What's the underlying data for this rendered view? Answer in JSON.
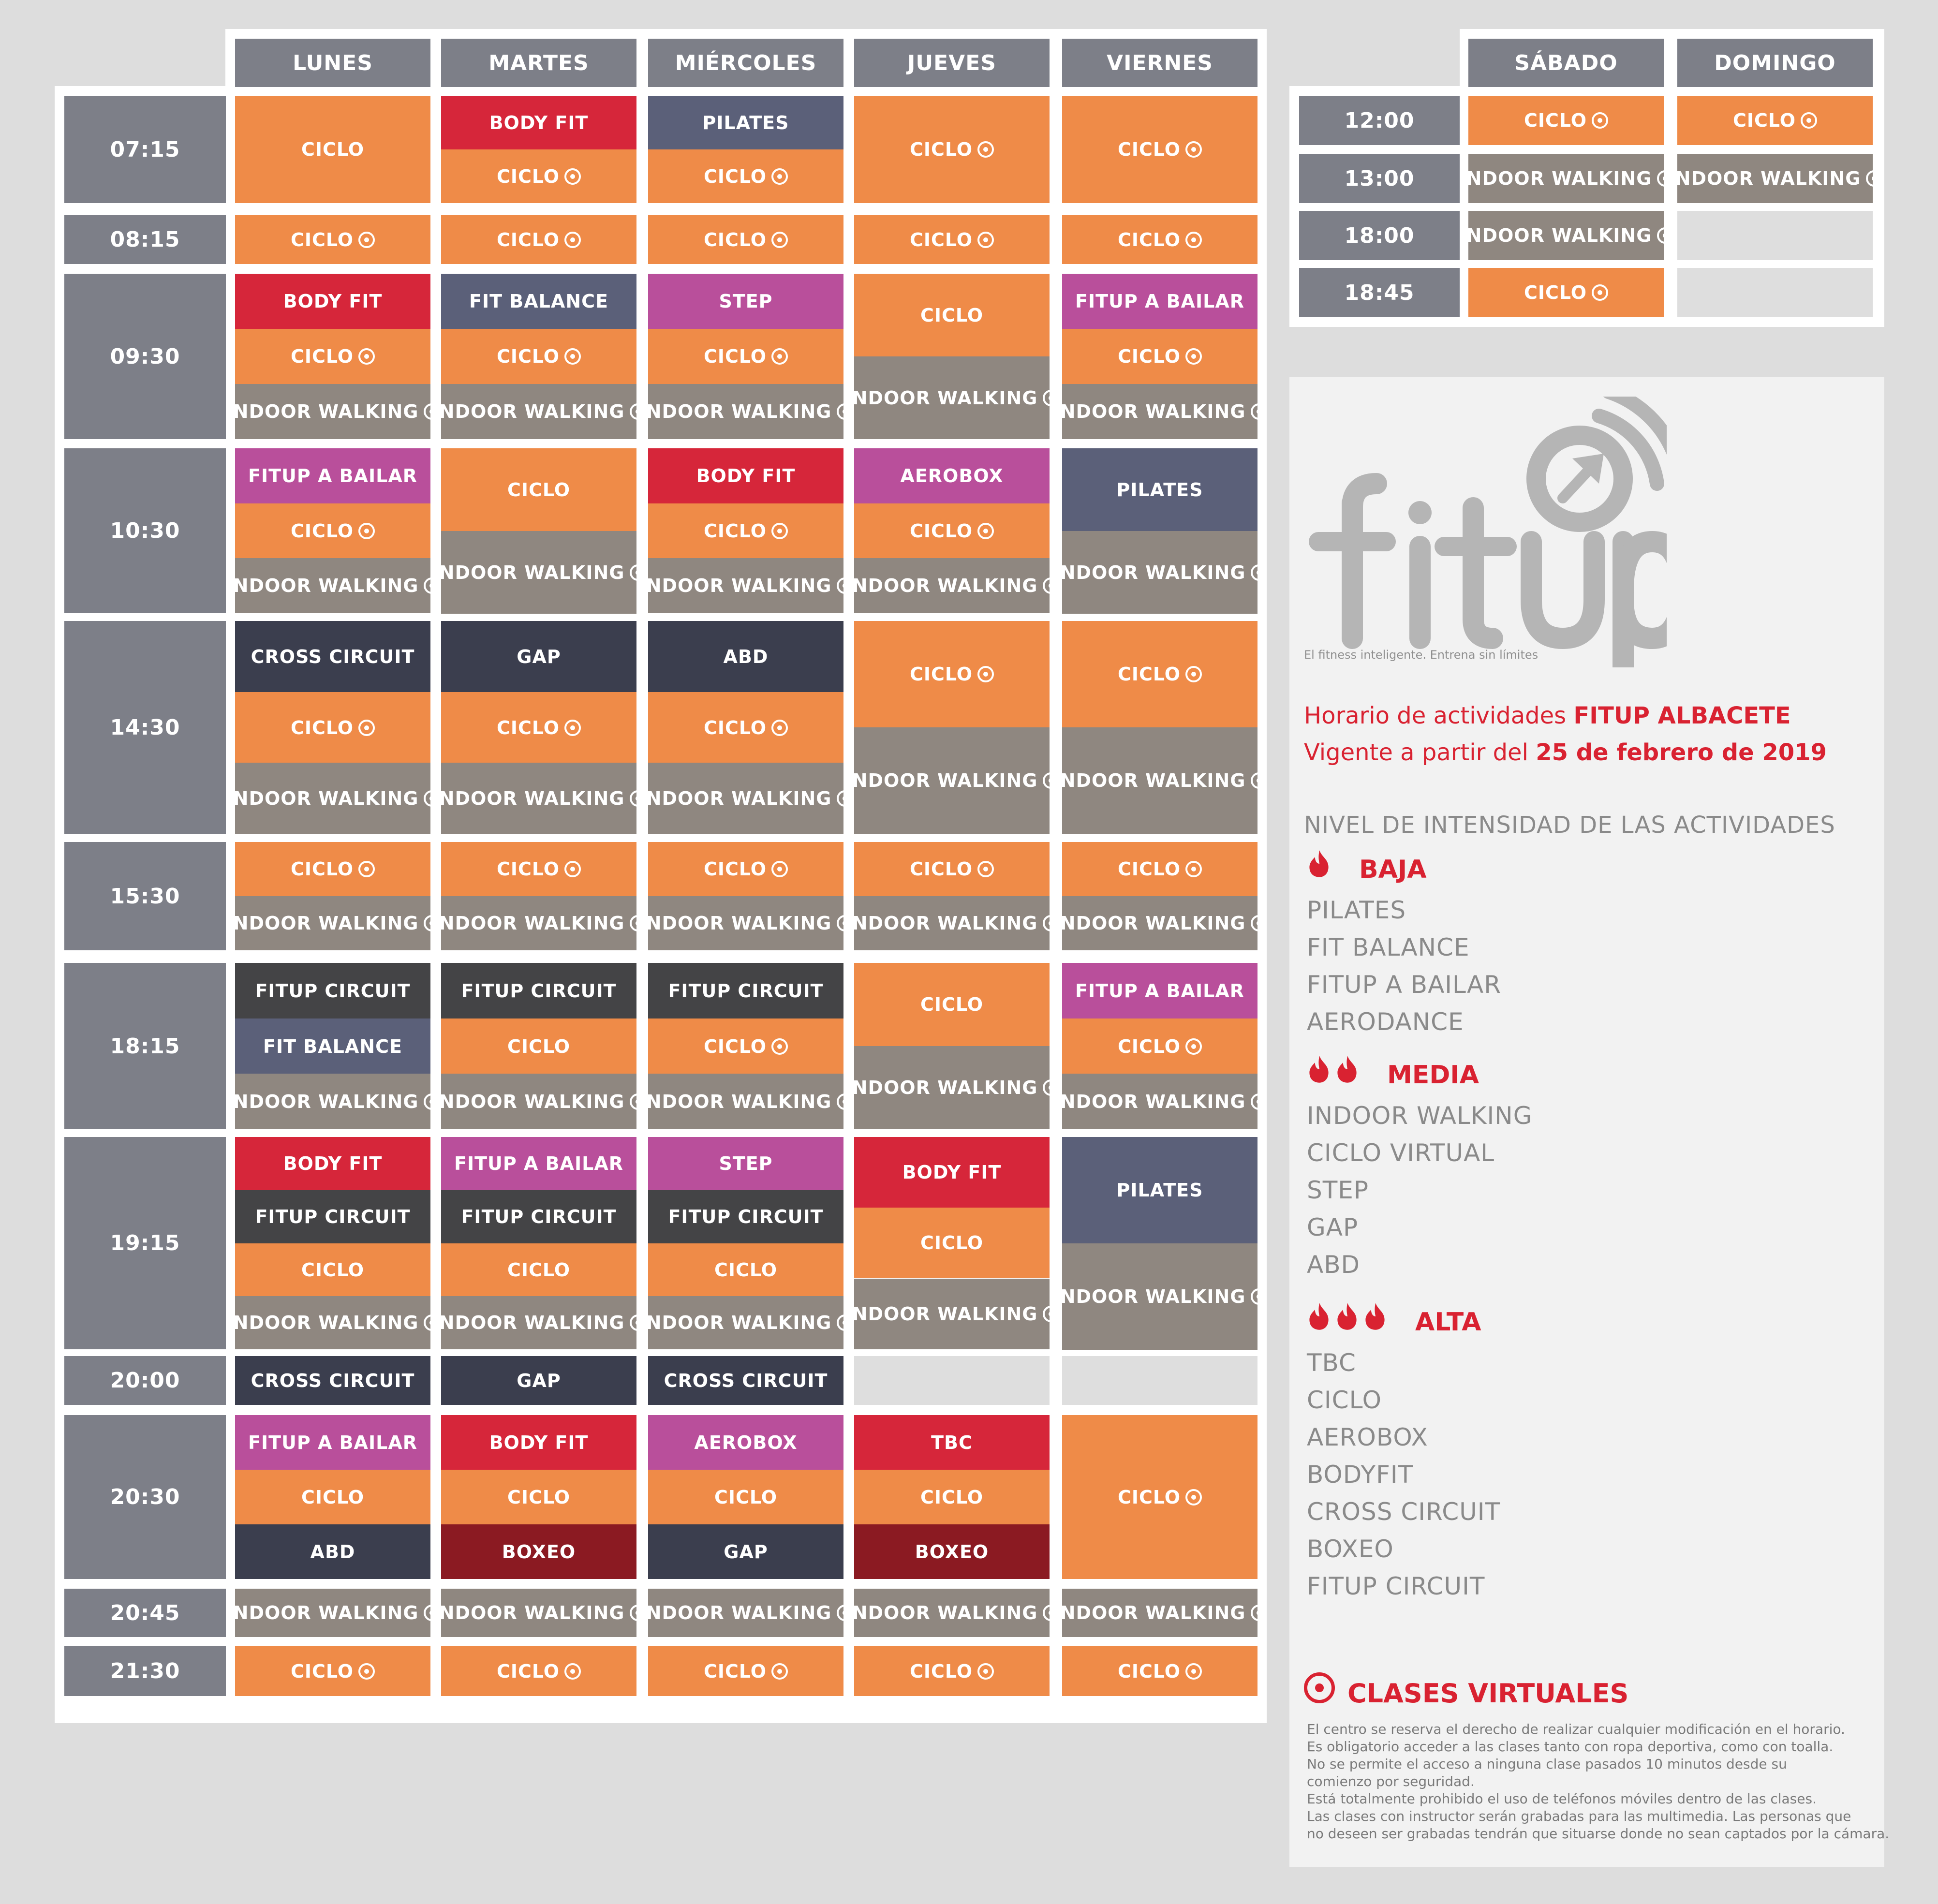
{
  "colors": {
    "orange": "#ef8b48",
    "red": "#d6263a",
    "slate": "#5b6079",
    "magenta": "#b94f9b",
    "taupe": "#8f8780",
    "dark": "#3b3e4e",
    "charcoal": "#444446",
    "maroon": "#8b1a22",
    "header": "#7d7f88",
    "empty": "#dedede",
    "brand_red": "#d92231",
    "logo_grey": "#b5b5b5"
  },
  "weekday": {
    "days": [
      "LUNES",
      "MARTES",
      "MIÉRCOLES",
      "JUEVES",
      "VIERNES"
    ],
    "times": [
      "07:15",
      "08:15",
      "09:30",
      "10:30",
      "14:30",
      "15:30",
      "18:15",
      "19:15",
      "20:00",
      "20:30",
      "20:45",
      "21:30"
    ],
    "rows": [
      [
        [
          {
            "n": "CICLO",
            "c": "orange"
          }
        ],
        [
          {
            "n": "BODY FIT",
            "c": "red"
          },
          {
            "n": "CICLO",
            "c": "orange",
            "v": true
          }
        ],
        [
          {
            "n": "PILATES",
            "c": "slate"
          },
          {
            "n": "CICLO",
            "c": "orange",
            "v": true
          }
        ],
        [
          {
            "n": "CICLO",
            "c": "orange",
            "v": true
          }
        ],
        [
          {
            "n": "CICLO",
            "c": "orange",
            "v": true
          }
        ]
      ],
      [
        [
          {
            "n": "CICLO",
            "c": "orange",
            "v": true
          }
        ],
        [
          {
            "n": "CICLO",
            "c": "orange",
            "v": true
          }
        ],
        [
          {
            "n": "CICLO",
            "c": "orange",
            "v": true
          }
        ],
        [
          {
            "n": "CICLO",
            "c": "orange",
            "v": true
          }
        ],
        [
          {
            "n": "CICLO",
            "c": "orange",
            "v": true
          }
        ]
      ],
      [
        [
          {
            "n": "BODY FIT",
            "c": "red"
          },
          {
            "n": "CICLO",
            "c": "orange",
            "v": true
          },
          {
            "n": "INDOOR WALKING",
            "c": "taupe",
            "v": true
          }
        ],
        [
          {
            "n": "FIT BALANCE",
            "c": "slate"
          },
          {
            "n": "CICLO",
            "c": "orange",
            "v": true
          },
          {
            "n": "INDOOR WALKING",
            "c": "taupe",
            "v": true
          }
        ],
        [
          {
            "n": "STEP",
            "c": "magenta"
          },
          {
            "n": "CICLO",
            "c": "orange",
            "v": true
          },
          {
            "n": "INDOOR WALKING",
            "c": "taupe",
            "v": true
          }
        ],
        [
          {
            "n": "CICLO",
            "c": "orange"
          },
          {
            "n": "INDOOR WALKING",
            "c": "taupe",
            "v": true
          }
        ],
        [
          {
            "n": "FITUP A BAILAR",
            "c": "magenta"
          },
          {
            "n": "CICLO",
            "c": "orange",
            "v": true
          },
          {
            "n": "INDOOR WALKING",
            "c": "taupe",
            "v": true
          }
        ]
      ],
      [
        [
          {
            "n": "FITUP A BAILAR",
            "c": "magenta"
          },
          {
            "n": "CICLO",
            "c": "orange",
            "v": true
          },
          {
            "n": "INDOOR WALKING",
            "c": "taupe",
            "v": true
          }
        ],
        [
          {
            "n": "CICLO",
            "c": "orange"
          },
          {
            "n": "INDOOR WALKING",
            "c": "taupe",
            "v": true
          }
        ],
        [
          {
            "n": "BODY FIT",
            "c": "red"
          },
          {
            "n": "CICLO",
            "c": "orange",
            "v": true
          },
          {
            "n": "INDOOR WALKING",
            "c": "taupe",
            "v": true
          }
        ],
        [
          {
            "n": "AEROBOX",
            "c": "magenta"
          },
          {
            "n": "CICLO",
            "c": "orange",
            "v": true
          },
          {
            "n": "INDOOR WALKING",
            "c": "taupe",
            "v": true
          }
        ],
        [
          {
            "n": "PILATES",
            "c": "slate"
          },
          {
            "n": "INDOOR WALKING",
            "c": "taupe",
            "v": true
          }
        ]
      ],
      [
        [
          {
            "n": "CROSS CIRCUIT",
            "c": "dark"
          },
          {
            "n": "CICLO",
            "c": "orange",
            "v": true
          },
          {
            "n": "INDOOR WALKING",
            "c": "taupe",
            "v": true
          }
        ],
        [
          {
            "n": "GAP",
            "c": "dark"
          },
          {
            "n": "CICLO",
            "c": "orange",
            "v": true
          },
          {
            "n": "INDOOR WALKING",
            "c": "taupe",
            "v": true
          }
        ],
        [
          {
            "n": "ABD",
            "c": "dark"
          },
          {
            "n": "CICLO",
            "c": "orange",
            "v": true
          },
          {
            "n": "INDOOR WALKING",
            "c": "taupe",
            "v": true
          }
        ],
        [
          {
            "n": "CICLO",
            "c": "orange",
            "v": true
          },
          {
            "n": "INDOOR WALKING",
            "c": "taupe",
            "v": true
          }
        ],
        [
          {
            "n": "CICLO",
            "c": "orange",
            "v": true
          },
          {
            "n": "INDOOR WALKING",
            "c": "taupe",
            "v": true
          }
        ]
      ],
      [
        [
          {
            "n": "CICLO",
            "c": "orange",
            "v": true
          },
          {
            "n": "INDOOR WALKING",
            "c": "taupe",
            "v": true
          }
        ],
        [
          {
            "n": "CICLO",
            "c": "orange",
            "v": true
          },
          {
            "n": "INDOOR WALKING",
            "c": "taupe",
            "v": true
          }
        ],
        [
          {
            "n": "CICLO",
            "c": "orange",
            "v": true
          },
          {
            "n": "INDOOR WALKING",
            "c": "taupe",
            "v": true
          }
        ],
        [
          {
            "n": "CICLO",
            "c": "orange",
            "v": true
          },
          {
            "n": "INDOOR WALKING",
            "c": "taupe",
            "v": true
          }
        ],
        [
          {
            "n": "CICLO",
            "c": "orange",
            "v": true
          },
          {
            "n": "INDOOR WALKING",
            "c": "taupe",
            "v": true
          }
        ]
      ],
      [
        [
          {
            "n": "FITUP CIRCUIT",
            "c": "charcoal"
          },
          {
            "n": "FIT BALANCE",
            "c": "slate"
          },
          {
            "n": "INDOOR WALKING",
            "c": "taupe",
            "v": true
          }
        ],
        [
          {
            "n": "FITUP CIRCUIT",
            "c": "charcoal"
          },
          {
            "n": "CICLO",
            "c": "orange"
          },
          {
            "n": "INDOOR WALKING",
            "c": "taupe",
            "v": true
          }
        ],
        [
          {
            "n": "FITUP CIRCUIT",
            "c": "charcoal"
          },
          {
            "n": "CICLO",
            "c": "orange",
            "v": true
          },
          {
            "n": "INDOOR WALKING",
            "c": "taupe",
            "v": true
          }
        ],
        [
          {
            "n": "CICLO",
            "c": "orange"
          },
          {
            "n": "INDOOR WALKING",
            "c": "taupe",
            "v": true
          }
        ],
        [
          {
            "n": "FITUP A BAILAR",
            "c": "magenta"
          },
          {
            "n": "CICLO",
            "c": "orange",
            "v": true
          },
          {
            "n": "INDOOR WALKING",
            "c": "taupe",
            "v": true
          }
        ]
      ],
      [
        [
          {
            "n": "BODY FIT",
            "c": "red"
          },
          {
            "n": "FITUP CIRCUIT",
            "c": "charcoal"
          },
          {
            "n": "CICLO",
            "c": "orange"
          },
          {
            "n": "INDOOR WALKING",
            "c": "taupe",
            "v": true
          }
        ],
        [
          {
            "n": "FITUP A BAILAR",
            "c": "magenta"
          },
          {
            "n": "FITUP CIRCUIT",
            "c": "charcoal"
          },
          {
            "n": "CICLO",
            "c": "orange"
          },
          {
            "n": "INDOOR WALKING",
            "c": "taupe",
            "v": true
          }
        ],
        [
          {
            "n": "STEP",
            "c": "magenta"
          },
          {
            "n": "FITUP CIRCUIT",
            "c": "charcoal"
          },
          {
            "n": "CICLO",
            "c": "orange"
          },
          {
            "n": "INDOOR WALKING",
            "c": "taupe",
            "v": true
          }
        ],
        [
          {
            "n": "BODY FIT",
            "c": "red"
          },
          {
            "n": "CICLO",
            "c": "orange"
          },
          {
            "n": "INDOOR WALKING",
            "c": "taupe",
            "v": true
          }
        ],
        [
          {
            "n": "PILATES",
            "c": "slate"
          },
          {
            "n": "INDOOR WALKING",
            "c": "taupe",
            "v": true
          }
        ]
      ],
      [
        [
          {
            "n": "CROSS CIRCUIT",
            "c": "dark"
          }
        ],
        [
          {
            "n": "GAP",
            "c": "dark"
          }
        ],
        [
          {
            "n": "CROSS CIRCUIT",
            "c": "dark"
          }
        ],
        [
          {
            "n": "",
            "c": "empty"
          }
        ],
        [
          {
            "n": "",
            "c": "empty"
          }
        ]
      ],
      [
        [
          {
            "n": "FITUP A BAILAR",
            "c": "magenta"
          },
          {
            "n": "CICLO",
            "c": "orange"
          },
          {
            "n": "ABD",
            "c": "dark"
          }
        ],
        [
          {
            "n": "BODY FIT",
            "c": "red"
          },
          {
            "n": "CICLO",
            "c": "orange"
          },
          {
            "n": "BOXEO",
            "c": "maroon"
          }
        ],
        [
          {
            "n": "AEROBOX",
            "c": "magenta"
          },
          {
            "n": "CICLO",
            "c": "orange"
          },
          {
            "n": "GAP",
            "c": "dark"
          }
        ],
        [
          {
            "n": "TBC",
            "c": "red"
          },
          {
            "n": "CICLO",
            "c": "orange"
          },
          {
            "n": "BOXEO",
            "c": "maroon"
          }
        ],
        [
          {
            "n": "CICLO",
            "c": "orange",
            "v": true
          }
        ]
      ],
      [
        [
          {
            "n": "INDOOR WALKING",
            "c": "taupe",
            "v": true
          }
        ],
        [
          {
            "n": "INDOOR WALKING",
            "c": "taupe",
            "v": true
          }
        ],
        [
          {
            "n": "INDOOR WALKING",
            "c": "taupe",
            "v": true
          }
        ],
        [
          {
            "n": "INDOOR WALKING",
            "c": "taupe",
            "v": true
          }
        ],
        [
          {
            "n": "INDOOR WALKING",
            "c": "taupe",
            "v": true
          }
        ]
      ],
      [
        [
          {
            "n": "CICLO",
            "c": "orange",
            "v": true
          }
        ],
        [
          {
            "n": "CICLO",
            "c": "orange",
            "v": true
          }
        ],
        [
          {
            "n": "CICLO",
            "c": "orange",
            "v": true
          }
        ],
        [
          {
            "n": "CICLO",
            "c": "orange",
            "v": true
          }
        ],
        [
          {
            "n": "CICLO",
            "c": "orange",
            "v": true
          }
        ]
      ]
    ]
  },
  "weekend": {
    "days": [
      "SÁBADO",
      "DOMINGO"
    ],
    "times": [
      "12:00",
      "13:00",
      "18:00",
      "18:45"
    ],
    "rows": [
      [
        {
          "n": "CICLO",
          "c": "orange",
          "v": true
        },
        {
          "n": "CICLO",
          "c": "orange",
          "v": true
        }
      ],
      [
        {
          "n": "INDOOR WALKING",
          "c": "taupe",
          "v": true
        },
        {
          "n": "INDOOR WALKING",
          "c": "taupe",
          "v": true
        }
      ],
      [
        {
          "n": "INDOOR WALKING",
          "c": "taupe",
          "v": true
        },
        {
          "n": "",
          "c": "empty"
        }
      ],
      [
        {
          "n": "CICLO",
          "c": "orange",
          "v": true
        },
        {
          "n": "",
          "c": "empty"
        }
      ]
    ]
  },
  "info": {
    "logo_text": "fitup",
    "tagline": "El fitness inteligente. Entrena sin límites",
    "schedule_line1_prefix": "Horario de actividades ",
    "schedule_line1_bold": "FITUP ALBACETE",
    "schedule_line2_prefix": "Vigente a partir del ",
    "schedule_line2_bold": "25 de febrero de 2019",
    "intensity_title": "NIVEL DE INTENSIDAD DE LAS ACTIVIDADES",
    "levels": [
      {
        "title": "BAJA",
        "flames": 1,
        "items": [
          "PILATES",
          "FIT BALANCE",
          "FITUP A BAILAR",
          "AERODANCE"
        ]
      },
      {
        "title": "MEDIA",
        "flames": 2,
        "items": [
          "INDOOR WALKING",
          "CICLO VIRTUAL",
          "STEP",
          "GAP",
          "ABD"
        ]
      },
      {
        "title": "ALTA",
        "flames": 3,
        "items": [
          "TBC",
          "CICLO",
          "AEROBOX",
          "BODYFIT",
          "CROSS CIRCUIT",
          "BOXEO",
          "FITUP CIRCUIT"
        ]
      }
    ],
    "virtual_title": "CLASES VIRTUALES",
    "notes": [
      "El centro se reserva el derecho de realizar cualquier modificación en el horario.",
      "Es obligatorio acceder a las clases tanto con ropa deportiva, como con toalla.",
      "No se permite el acceso a ninguna clase pasados 10 minutos desde su",
      "comienzo por seguridad.",
      "Está totalmente prohibido el uso de teléfonos móviles dentro de las clases.",
      "Las clases con instructor serán grabadas para las multimedia. Las personas que",
      "no deseen ser grabadas tendrán que situarse donde no sean captados por la cámara."
    ]
  }
}
